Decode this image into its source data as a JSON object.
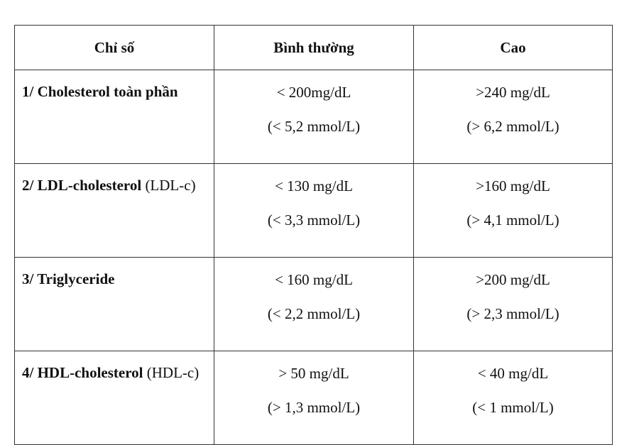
{
  "table": {
    "headers": [
      "Chỉ số",
      "Bình thường",
      "Cao"
    ],
    "rows": [
      {
        "name": "1/ Cholesterol toàn phần",
        "abbr": null,
        "normal": [
          "< 200mg/dL",
          "(< 5,2 mmol/L)"
        ],
        "high": [
          ">240 mg/dL",
          "(> 6,2 mmol/L)"
        ]
      },
      {
        "name": "2/ LDL-cholesterol",
        "abbr": "(LDL-c)",
        "normal": [
          "< 130 mg/dL",
          "(< 3,3 mmol/L)"
        ],
        "high": [
          ">160 mg/dL",
          "(> 4,1 mmol/L)"
        ]
      },
      {
        "name": "3/ Triglyceride",
        "abbr": null,
        "normal": [
          "< 160 mg/dL",
          "(< 2,2 mmol/L)"
        ],
        "high": [
          ">200 mg/dL",
          "(> 2,3 mmol/L)"
        ]
      },
      {
        "name": "4/  HDL-cholesterol",
        "abbr": "(HDL-c)",
        "normal": [
          "> 50 mg/dL",
          "(> 1,3 mmol/L)"
        ],
        "high": [
          "< 40 mg/dL",
          "(< 1 mmol/L)"
        ]
      }
    ]
  }
}
